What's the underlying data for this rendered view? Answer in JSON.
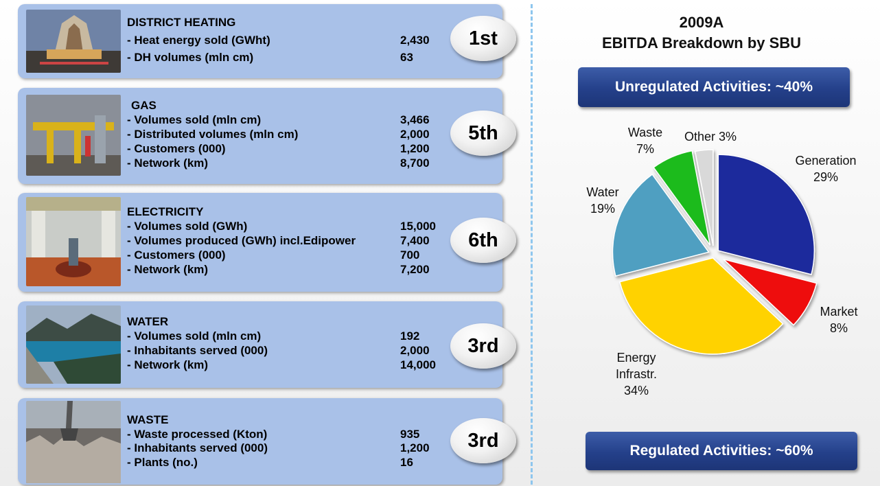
{
  "segments": [
    {
      "title": "DISTRICT HEATING",
      "rank": "1st",
      "rows": [
        {
          "label": "- Heat energy sold (GWht)",
          "value": "2,430"
        },
        {
          "label": "- DH volumes (mln cm)",
          "value": "63"
        }
      ]
    },
    {
      "title": "GAS",
      "rank": "5th",
      "rows": [
        {
          "label": "- Volumes sold (mln cm)",
          "value": "3,466"
        },
        {
          "label": "- Distributed volumes (mln cm)",
          "value": "2,000"
        },
        {
          "label": "- Customers (000)",
          "value": "1,200"
        },
        {
          "label": "- Network (km)",
          "value": "8,700"
        }
      ]
    },
    {
      "title": "ELECTRICITY",
      "rank": "6th",
      "rows": [
        {
          "label": "- Volumes sold (GWh)",
          "value": "15,000"
        },
        {
          "label": "- Volumes produced (GWh) incl.Edipower",
          "value": "7,400"
        },
        {
          "label": "- Customers (000)",
          "value": "700"
        },
        {
          "label": "- Network (km)",
          "value": "7,200"
        }
      ]
    },
    {
      "title": "WATER",
      "rank": "3rd",
      "rows": [
        {
          "label": "- Volumes sold (mln cm)",
          "value": "192"
        },
        {
          "label": "- Inhabitants served (000)",
          "value": "2,000"
        },
        {
          "label": "- Network (km)",
          "value": "14,000"
        }
      ]
    },
    {
      "title": "WASTE",
      "rank": "3rd",
      "rows": [
        {
          "label": "- Waste processed (Kton)",
          "value": "935"
        },
        {
          "label": "- Inhabitants served (000)",
          "value": "1,200"
        },
        {
          "label": "- Plants (no.)",
          "value": "16"
        }
      ]
    }
  ],
  "banners": {
    "unregulated": "Unregulated Activities: ~40%",
    "regulated": "Regulated Activities: ~60%"
  },
  "chart_data": {
    "type": "pie",
    "title": "2009A",
    "subtitle": "EBITDA Breakdown by SBU",
    "slices": [
      {
        "name": "Generation",
        "value": 29,
        "color": "#1c2a9c"
      },
      {
        "name": "Market",
        "value": 8,
        "color": "#ee1111"
      },
      {
        "name": "Energy Infrastr.",
        "value": 34,
        "color": "#ffd200"
      },
      {
        "name": "Water",
        "value": 19,
        "color": "#4f9fc1"
      },
      {
        "name": "Waste",
        "value": 7,
        "color": "#1fbb1f"
      },
      {
        "name": "Other",
        "value": 3,
        "color": "#d9d9d9"
      }
    ],
    "labels": [
      {
        "lines": [
          "Generation",
          "29%"
        ]
      },
      {
        "lines": [
          "Market",
          "8%"
        ]
      },
      {
        "lines": [
          "Energy",
          "Infrastr.",
          "34%"
        ]
      },
      {
        "lines": [
          "Water",
          "19%"
        ]
      },
      {
        "lines": [
          "Waste",
          "7%"
        ]
      },
      {
        "lines": [
          "Other 3%"
        ]
      }
    ]
  }
}
